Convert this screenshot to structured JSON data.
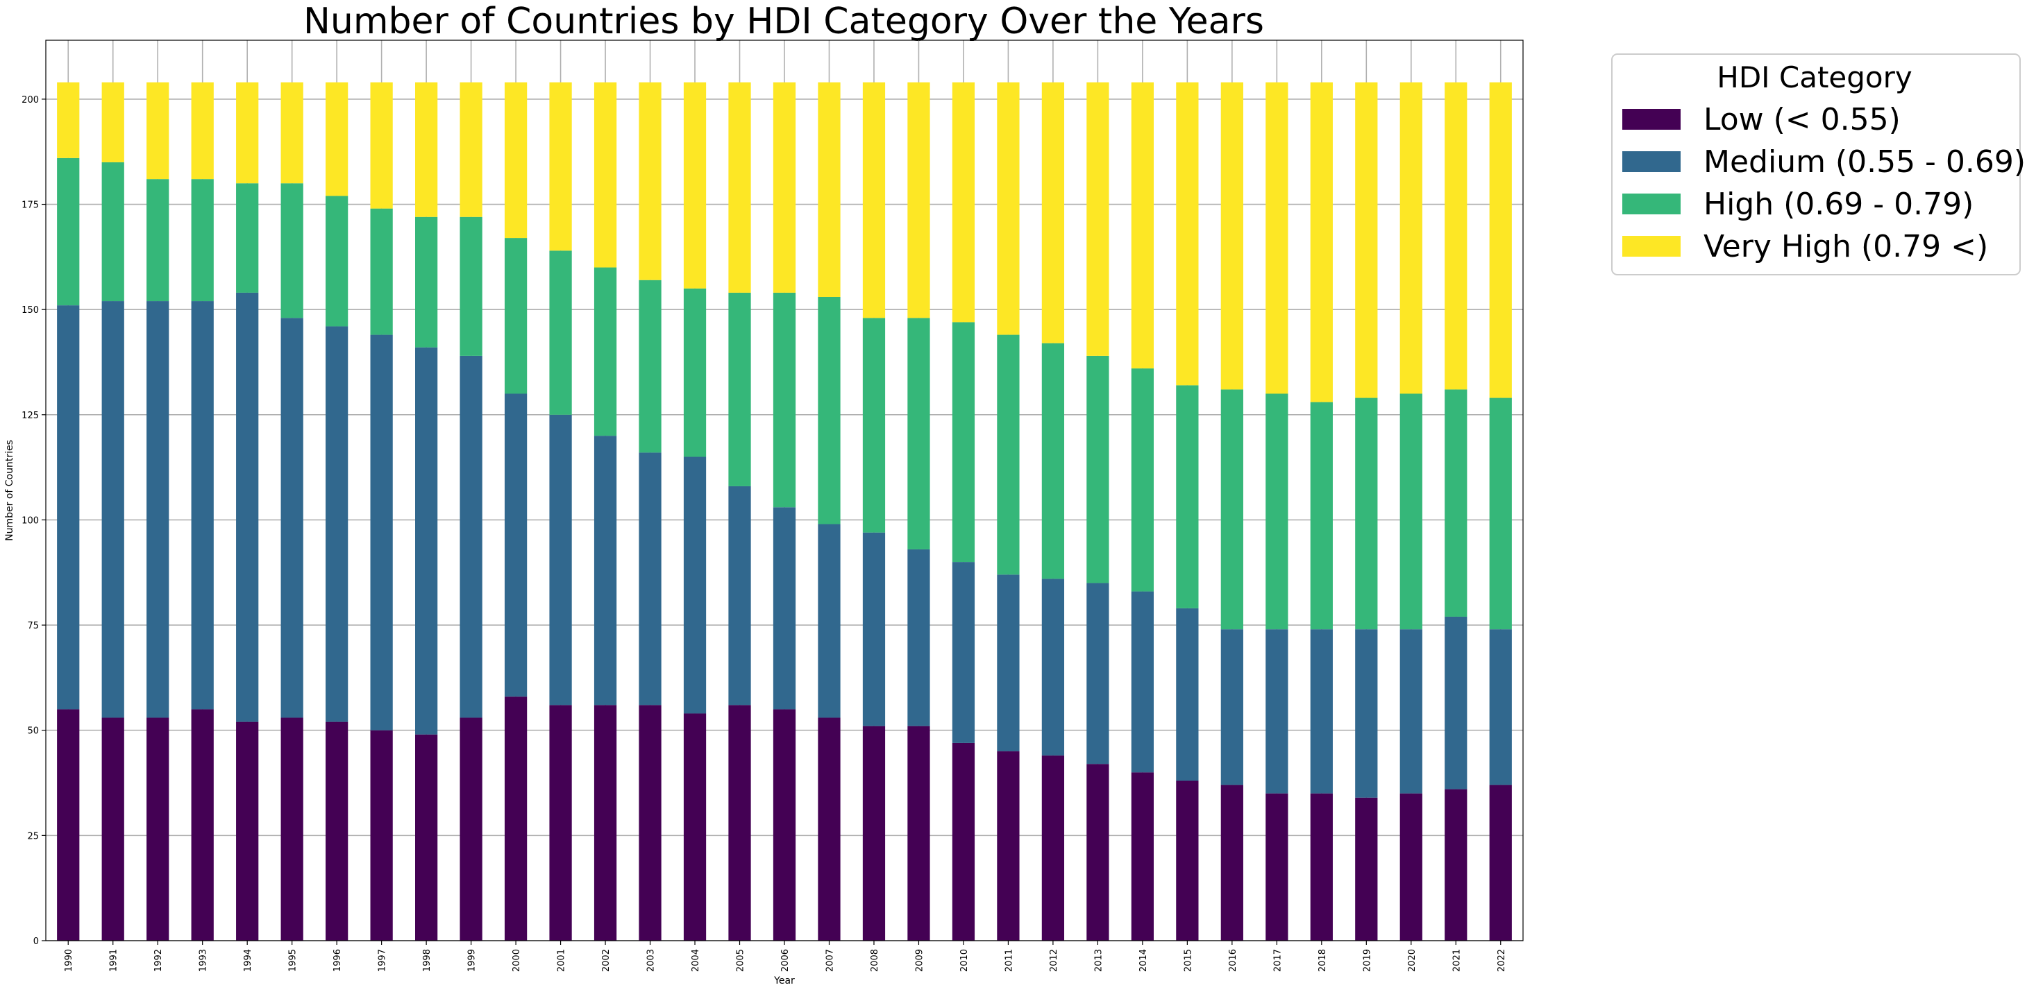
{
  "chart_data": {
    "type": "bar",
    "stacked": true,
    "title": "Number of Countries by HDI Category Over the Years",
    "xlabel": "Year",
    "ylabel": "Number of Countries",
    "ylim": [
      0,
      214
    ],
    "yticks": [
      0,
      25,
      50,
      75,
      100,
      125,
      150,
      175,
      200
    ],
    "grid": true,
    "legend_position": "outside-top-right",
    "legend_title": "HDI Category",
    "categories": [
      "1990",
      "1991",
      "1992",
      "1993",
      "1994",
      "1995",
      "1996",
      "1997",
      "1998",
      "1999",
      "2000",
      "2001",
      "2002",
      "2003",
      "2004",
      "2005",
      "2006",
      "2007",
      "2008",
      "2009",
      "2010",
      "2011",
      "2012",
      "2013",
      "2014",
      "2015",
      "2016",
      "2017",
      "2018",
      "2019",
      "2020",
      "2021",
      "2022"
    ],
    "series": [
      {
        "name": "Low (< 0.55)",
        "color": "#440154",
        "values": [
          55,
          53,
          53,
          55,
          52,
          53,
          52,
          50,
          49,
          53,
          58,
          56,
          56,
          56,
          54,
          56,
          55,
          53,
          51,
          51,
          47,
          45,
          44,
          42,
          40,
          38,
          37,
          35,
          35,
          34,
          35,
          36,
          37
        ]
      },
      {
        "name": "Medium (0.55 - 0.69)",
        "color": "#31688e",
        "values": [
          96,
          99,
          99,
          97,
          102,
          95,
          94,
          94,
          92,
          86,
          72,
          69,
          64,
          60,
          61,
          52,
          48,
          46,
          46,
          42,
          43,
          42,
          42,
          43,
          43,
          41,
          37,
          39,
          39,
          40,
          39,
          41,
          37
        ]
      },
      {
        "name": "High (0.69 - 0.79)",
        "color": "#35b779",
        "values": [
          35,
          33,
          29,
          29,
          26,
          32,
          31,
          30,
          31,
          33,
          37,
          39,
          40,
          41,
          40,
          46,
          51,
          54,
          51,
          55,
          57,
          57,
          56,
          54,
          53,
          53,
          57,
          56,
          54,
          55,
          56,
          54,
          55
        ]
      },
      {
        "name": "Very High (0.79 <)",
        "color": "#fde725",
        "values": [
          18,
          19,
          23,
          23,
          24,
          24,
          27,
          30,
          32,
          32,
          37,
          40,
          44,
          47,
          49,
          50,
          50,
          51,
          56,
          56,
          57,
          60,
          62,
          65,
          68,
          72,
          73,
          74,
          76,
          75,
          74,
          73,
          75
        ]
      }
    ]
  }
}
